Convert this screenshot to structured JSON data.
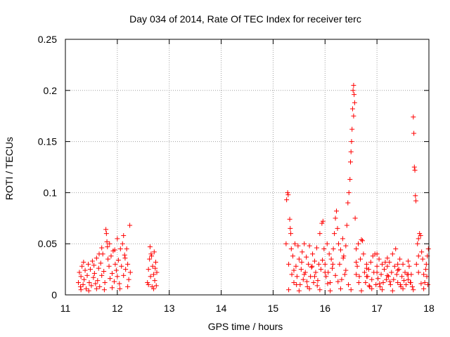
{
  "chart_data": {
    "type": "scatter",
    "title": "Day 034 of 2014, Rate Of TEC Index for receiver terc",
    "xlabel": "GPS time / hours",
    "ylabel": "ROTI / TECUs",
    "xlim": [
      11,
      18
    ],
    "ylim": [
      0,
      0.25
    ],
    "xticks": [
      "11",
      "12",
      "13",
      "14",
      "15",
      "16",
      "17",
      "18"
    ],
    "yticks": [
      "0",
      "0.05",
      "0.1",
      "0.15",
      "0.2",
      "0.25"
    ],
    "grid": true,
    "marker": "+",
    "color": "#ff0000",
    "series": [
      {
        "name": "ROTI",
        "points": [
          [
            11.25,
            0.012
          ],
          [
            11.27,
            0.022
          ],
          [
            11.29,
            0.008
          ],
          [
            11.3,
            0.018
          ],
          [
            11.32,
            0.028
          ],
          [
            11.34,
            0.01
          ],
          [
            11.36,
            0.015
          ],
          [
            11.38,
            0.024
          ],
          [
            11.4,
            0.006
          ],
          [
            11.42,
            0.019
          ],
          [
            11.44,
            0.03
          ],
          [
            11.46,
            0.012
          ],
          [
            11.48,
            0.025
          ],
          [
            11.5,
            0.009
          ],
          [
            11.52,
            0.033
          ],
          [
            11.54,
            0.017
          ],
          [
            11.56,
            0.021
          ],
          [
            11.58,
            0.011
          ],
          [
            11.6,
            0.036
          ],
          [
            11.62,
            0.014
          ],
          [
            11.64,
            0.026
          ],
          [
            11.66,
            0.008
          ],
          [
            11.68,
            0.031
          ],
          [
            11.7,
            0.019
          ],
          [
            11.72,
            0.04
          ],
          [
            11.74,
            0.023
          ],
          [
            11.76,
            0.012
          ],
          [
            11.78,
            0.064
          ],
          [
            11.79,
            0.06
          ],
          [
            11.8,
            0.052
          ],
          [
            11.81,
            0.047
          ],
          [
            11.82,
            0.035
          ],
          [
            11.84,
            0.028
          ],
          [
            11.86,
            0.016
          ],
          [
            11.88,
            0.038
          ],
          [
            11.9,
            0.021
          ],
          [
            11.92,
            0.043
          ],
          [
            11.94,
            0.013
          ],
          [
            11.96,
            0.03
          ],
          [
            11.98,
            0.024
          ],
          [
            12.0,
            0.018
          ],
          [
            12.02,
            0.034
          ],
          [
            12.04,
            0.011
          ],
          [
            12.06,
            0.045
          ],
          [
            12.08,
            0.028
          ],
          [
            12.1,
            0.05
          ],
          [
            12.12,
            0.019
          ],
          [
            12.14,
            0.039
          ],
          [
            12.16,
            0.025
          ],
          [
            12.18,
            0.045
          ],
          [
            12.2,
            0.03
          ],
          [
            12.22,
            0.015
          ],
          [
            12.24,
            0.068
          ],
          [
            12.25,
            0.022
          ],
          [
            11.3,
            0.005
          ],
          [
            11.45,
            0.004
          ],
          [
            11.6,
            0.006
          ],
          [
            11.75,
            0.005
          ],
          [
            11.9,
            0.007
          ],
          [
            12.05,
            0.006
          ],
          [
            12.2,
            0.008
          ],
          [
            11.35,
            0.032
          ],
          [
            11.55,
            0.029
          ],
          [
            11.65,
            0.04
          ],
          [
            11.85,
            0.05
          ],
          [
            12.0,
            0.055
          ],
          [
            12.12,
            0.058
          ],
          [
            11.7,
            0.046
          ],
          [
            11.95,
            0.044
          ],
          [
            12.15,
            0.036
          ],
          [
            12.58,
            0.012
          ],
          [
            12.6,
            0.025
          ],
          [
            12.62,
            0.035
          ],
          [
            12.63,
            0.047
          ],
          [
            12.64,
            0.018
          ],
          [
            12.66,
            0.038
          ],
          [
            12.67,
            0.008
          ],
          [
            12.68,
            0.028
          ],
          [
            12.7,
            0.02
          ],
          [
            12.71,
            0.042
          ],
          [
            12.72,
            0.014
          ],
          [
            12.74,
            0.032
          ],
          [
            12.75,
            0.009
          ],
          [
            12.76,
            0.022
          ],
          [
            12.6,
            0.01
          ],
          [
            12.7,
            0.006
          ],
          [
            12.65,
            0.04
          ],
          [
            12.73,
            0.026
          ],
          [
            15.25,
            0.05
          ],
          [
            15.26,
            0.093
          ],
          [
            15.28,
            0.1
          ],
          [
            15.29,
            0.098
          ],
          [
            15.3,
            0.03
          ],
          [
            15.32,
            0.074
          ],
          [
            15.33,
            0.065
          ],
          [
            15.34,
            0.06
          ],
          [
            15.35,
            0.045
          ],
          [
            15.36,
            0.02
          ],
          [
            15.38,
            0.038
          ],
          [
            15.4,
            0.012
          ],
          [
            15.42,
            0.05
          ],
          [
            15.44,
            0.028
          ],
          [
            15.46,
            0.018
          ],
          [
            15.48,
            0.048
          ],
          [
            15.5,
            0.035
          ],
          [
            15.52,
            0.01
          ],
          [
            15.54,
            0.025
          ],
          [
            15.56,
            0.042
          ],
          [
            15.58,
            0.015
          ],
          [
            15.6,
            0.05
          ],
          [
            15.62,
            0.022
          ],
          [
            15.64,
            0.037
          ],
          [
            15.66,
            0.008
          ],
          [
            15.68,
            0.03
          ],
          [
            15.7,
            0.048
          ],
          [
            15.72,
            0.018
          ],
          [
            15.74,
            0.027
          ],
          [
            15.76,
            0.04
          ],
          [
            15.78,
            0.012
          ],
          [
            15.8,
            0.033
          ],
          [
            15.82,
            0.022
          ],
          [
            15.84,
            0.046
          ],
          [
            15.86,
            0.014
          ],
          [
            15.88,
            0.03
          ],
          [
            15.9,
            0.06
          ],
          [
            15.92,
            0.025
          ],
          [
            15.94,
            0.07
          ],
          [
            15.96,
            0.072
          ],
          [
            15.98,
            0.045
          ],
          [
            16.0,
            0.03
          ],
          [
            16.02,
            0.018
          ],
          [
            16.04,
            0.05
          ],
          [
            16.06,
            0.022
          ],
          [
            16.08,
            0.04
          ],
          [
            16.1,
            0.012
          ],
          [
            16.12,
            0.035
          ],
          [
            16.14,
            0.026
          ],
          [
            16.16,
            0.045
          ],
          [
            16.18,
            0.06
          ],
          [
            16.2,
            0.075
          ],
          [
            16.22,
            0.082
          ],
          [
            16.24,
            0.065
          ],
          [
            16.26,
            0.05
          ],
          [
            16.28,
            0.03
          ],
          [
            16.3,
            0.044
          ],
          [
            16.32,
            0.015
          ],
          [
            16.34,
            0.055
          ],
          [
            16.36,
            0.038
          ],
          [
            16.38,
            0.02
          ],
          [
            16.4,
            0.048
          ],
          [
            16.42,
            0.068
          ],
          [
            16.44,
            0.09
          ],
          [
            16.46,
            0.1
          ],
          [
            16.48,
            0.113
          ],
          [
            16.49,
            0.13
          ],
          [
            16.5,
            0.14
          ],
          [
            16.51,
            0.15
          ],
          [
            16.52,
            0.162
          ],
          [
            16.53,
            0.182
          ],
          [
            16.54,
            0.2
          ],
          [
            16.55,
            0.205
          ],
          [
            16.56,
            0.196
          ],
          [
            16.57,
            0.188
          ],
          [
            16.55,
            0.175
          ],
          [
            16.58,
            0.075
          ],
          [
            16.6,
            0.045
          ],
          [
            16.62,
            0.028
          ],
          [
            16.64,
            0.05
          ],
          [
            16.66,
            0.018
          ],
          [
            16.68,
            0.035
          ],
          [
            16.7,
            0.054
          ],
          [
            16.72,
            0.053
          ],
          [
            16.74,
            0.04
          ],
          [
            16.76,
            0.022
          ],
          [
            16.78,
            0.012
          ],
          [
            16.8,
            0.03
          ],
          [
            16.82,
            0.018
          ],
          [
            16.84,
            0.025
          ],
          [
            16.86,
            0.008
          ],
          [
            16.88,
            0.032
          ],
          [
            16.9,
            0.015
          ],
          [
            16.92,
            0.038
          ],
          [
            16.94,
            0.022
          ],
          [
            16.96,
            0.04
          ],
          [
            16.98,
            0.01
          ],
          [
            17.0,
            0.028
          ],
          [
            17.02,
            0.016
          ],
          [
            17.04,
            0.035
          ],
          [
            17.06,
            0.008
          ],
          [
            17.08,
            0.02
          ],
          [
            17.1,
            0.03
          ],
          [
            17.12,
            0.012
          ],
          [
            17.14,
            0.025
          ],
          [
            17.16,
            0.032
          ],
          [
            17.18,
            0.015
          ],
          [
            17.2,
            0.028
          ],
          [
            17.22,
            0.018
          ],
          [
            17.24,
            0.032
          ],
          [
            17.26,
            0.01
          ],
          [
            17.28,
            0.022
          ],
          [
            17.3,
            0.04
          ],
          [
            17.32,
            0.015
          ],
          [
            17.34,
            0.028
          ],
          [
            17.36,
            0.045
          ],
          [
            17.38,
            0.02
          ],
          [
            17.4,
            0.012
          ],
          [
            17.42,
            0.025
          ],
          [
            17.44,
            0.035
          ],
          [
            17.46,
            0.008
          ],
          [
            17.48,
            0.018
          ],
          [
            17.5,
            0.03
          ],
          [
            17.52,
            0.014
          ],
          [
            17.54,
            0.022
          ],
          [
            17.56,
            0.01
          ],
          [
            17.58,
            0.02
          ],
          [
            17.6,
            0.015
          ],
          [
            17.62,
            0.028
          ],
          [
            17.64,
            0.012
          ],
          [
            17.66,
            0.02
          ],
          [
            17.68,
            0.008
          ],
          [
            17.7,
            0.174
          ],
          [
            17.71,
            0.158
          ],
          [
            17.72,
            0.125
          ],
          [
            17.73,
            0.122
          ],
          [
            17.74,
            0.097
          ],
          [
            17.75,
            0.092
          ],
          [
            17.76,
            0.03
          ],
          [
            17.78,
            0.05
          ],
          [
            17.8,
            0.055
          ],
          [
            17.82,
            0.06
          ],
          [
            17.84,
            0.058
          ],
          [
            17.86,
            0.042
          ],
          [
            17.88,
            0.035
          ],
          [
            17.9,
            0.02
          ],
          [
            17.92,
            0.012
          ],
          [
            17.94,
            0.025
          ],
          [
            17.96,
            0.018
          ],
          [
            17.98,
            0.01
          ],
          [
            15.3,
            0.005
          ],
          [
            15.5,
            0.004
          ],
          [
            15.7,
            0.006
          ],
          [
            15.9,
            0.005
          ],
          [
            16.1,
            0.004
          ],
          [
            16.3,
            0.006
          ],
          [
            16.5,
            0.005
          ],
          [
            16.7,
            0.004
          ],
          [
            16.9,
            0.006
          ],
          [
            17.1,
            0.005
          ],
          [
            17.3,
            0.004
          ],
          [
            17.5,
            0.006
          ],
          [
            17.7,
            0.005
          ],
          [
            17.9,
            0.006
          ],
          [
            15.45,
            0.01
          ],
          [
            15.65,
            0.013
          ],
          [
            15.85,
            0.009
          ],
          [
            16.05,
            0.011
          ],
          [
            16.25,
            0.013
          ],
          [
            16.45,
            0.01
          ],
          [
            16.65,
            0.012
          ],
          [
            16.85,
            0.009
          ],
          [
            17.05,
            0.011
          ],
          [
            17.25,
            0.013
          ],
          [
            17.45,
            0.01
          ],
          [
            17.65,
            0.012
          ],
          [
            17.85,
            0.011
          ],
          [
            15.55,
            0.032
          ],
          [
            15.75,
            0.028
          ],
          [
            15.95,
            0.034
          ],
          [
            16.15,
            0.03
          ],
          [
            16.35,
            0.036
          ],
          [
            16.6,
            0.032
          ],
          [
            16.8,
            0.026
          ],
          [
            17.0,
            0.04
          ],
          [
            17.2,
            0.036
          ],
          [
            17.4,
            0.03
          ],
          [
            17.6,
            0.033
          ],
          [
            17.8,
            0.038
          ],
          [
            15.4,
            0.024
          ],
          [
            15.6,
            0.02
          ],
          [
            15.8,
            0.018
          ],
          [
            16.0,
            0.022
          ],
          [
            16.2,
            0.019
          ],
          [
            16.4,
            0.024
          ],
          [
            16.6,
            0.02
          ],
          [
            16.8,
            0.018
          ],
          [
            17.0,
            0.022
          ],
          [
            17.2,
            0.019
          ],
          [
            17.4,
            0.024
          ],
          [
            17.6,
            0.02
          ],
          [
            17.8,
            0.022
          ],
          [
            17.95,
            0.03
          ],
          [
            17.97,
            0.038
          ],
          [
            17.99,
            0.045
          ]
        ]
      }
    ]
  }
}
